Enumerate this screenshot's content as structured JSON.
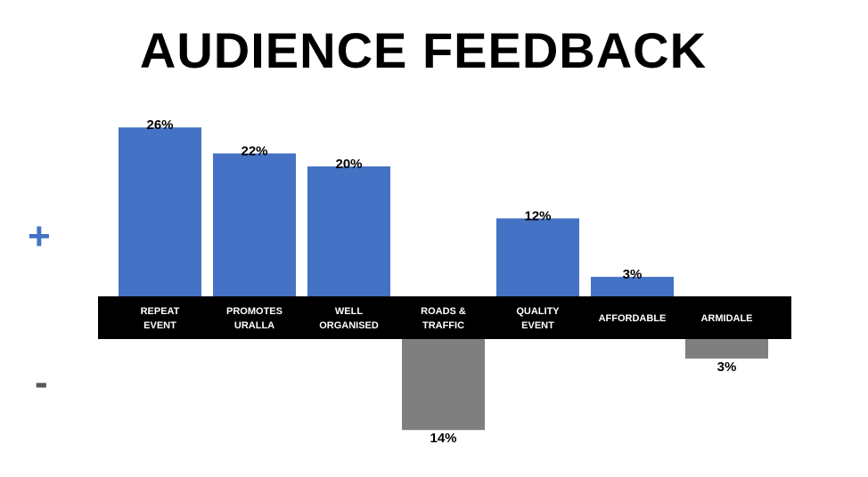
{
  "title": "AUDIENCE FEEDBACK",
  "plus_symbol": "+",
  "minus_symbol": "-",
  "colors": {
    "positive": "#4472C4",
    "negative": "#7F7F7F",
    "band": "#000000",
    "plus_symbol": "#4472C4",
    "minus_symbol": "#595959"
  },
  "chart_data": {
    "type": "bar",
    "title": "AUDIENCE FEEDBACK",
    "categories": [
      [
        "REPEAT",
        "EVENT"
      ],
      [
        "PROMOTES",
        "URALLA"
      ],
      [
        "WELL",
        "ORGANISED"
      ],
      [
        "ROADS &",
        "TRAFFIC"
      ],
      [
        "QUALITY",
        "EVENT"
      ],
      [
        "AFFORDABLE"
      ],
      [
        "ARMIDALE"
      ]
    ],
    "values": [
      26,
      22,
      20,
      -14,
      12,
      3,
      -3
    ],
    "labels": [
      "26%",
      "22%",
      "20%",
      "14%",
      "12%",
      "3%",
      "3%"
    ],
    "ylim": [
      -14,
      26
    ],
    "grid": false,
    "legend": "none"
  }
}
